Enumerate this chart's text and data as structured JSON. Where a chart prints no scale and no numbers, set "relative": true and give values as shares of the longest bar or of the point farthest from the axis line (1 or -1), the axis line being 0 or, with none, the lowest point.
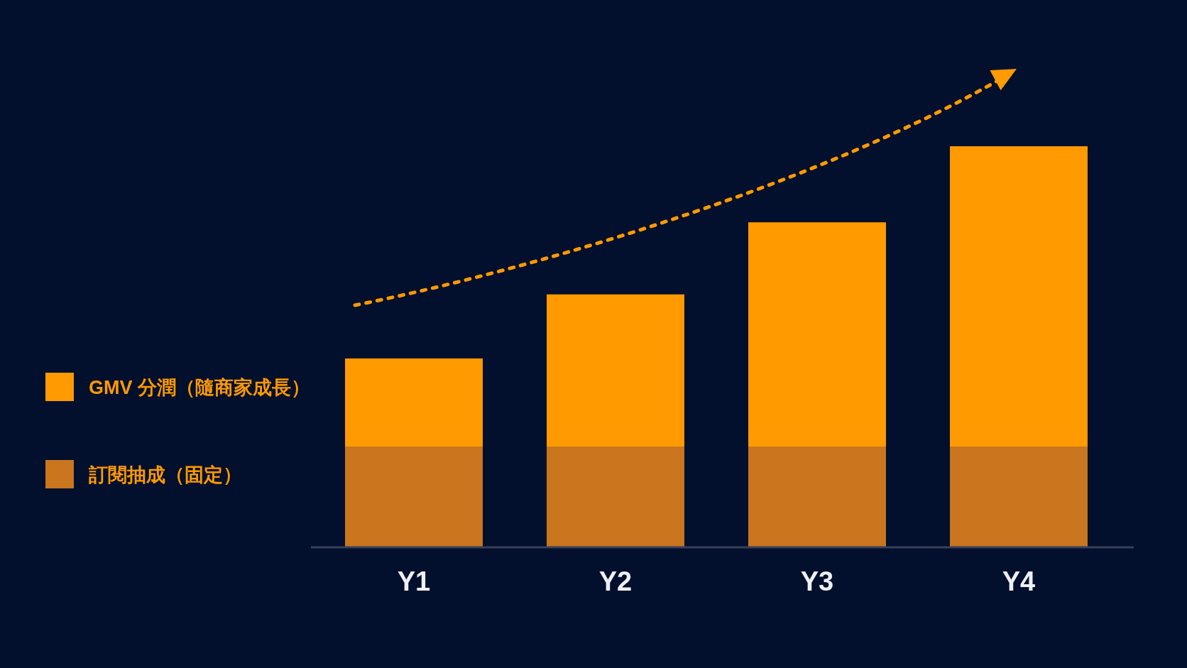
{
  "chart_data": {
    "type": "bar",
    "stacked": true,
    "relative": true,
    "categories": [
      "Y1",
      "Y2",
      "Y3",
      "Y4"
    ],
    "series": [
      {
        "name": "訂閱抽成（固定）",
        "color": "#c9761f",
        "values": [
          0.25,
          0.25,
          0.25,
          0.25
        ]
      },
      {
        "name": "GMV 分潤（隨商家成長）",
        "color": "#ff9a00",
        "values": [
          0.22,
          0.38,
          0.56,
          0.75
        ]
      }
    ],
    "legend": "left"
  }
}
